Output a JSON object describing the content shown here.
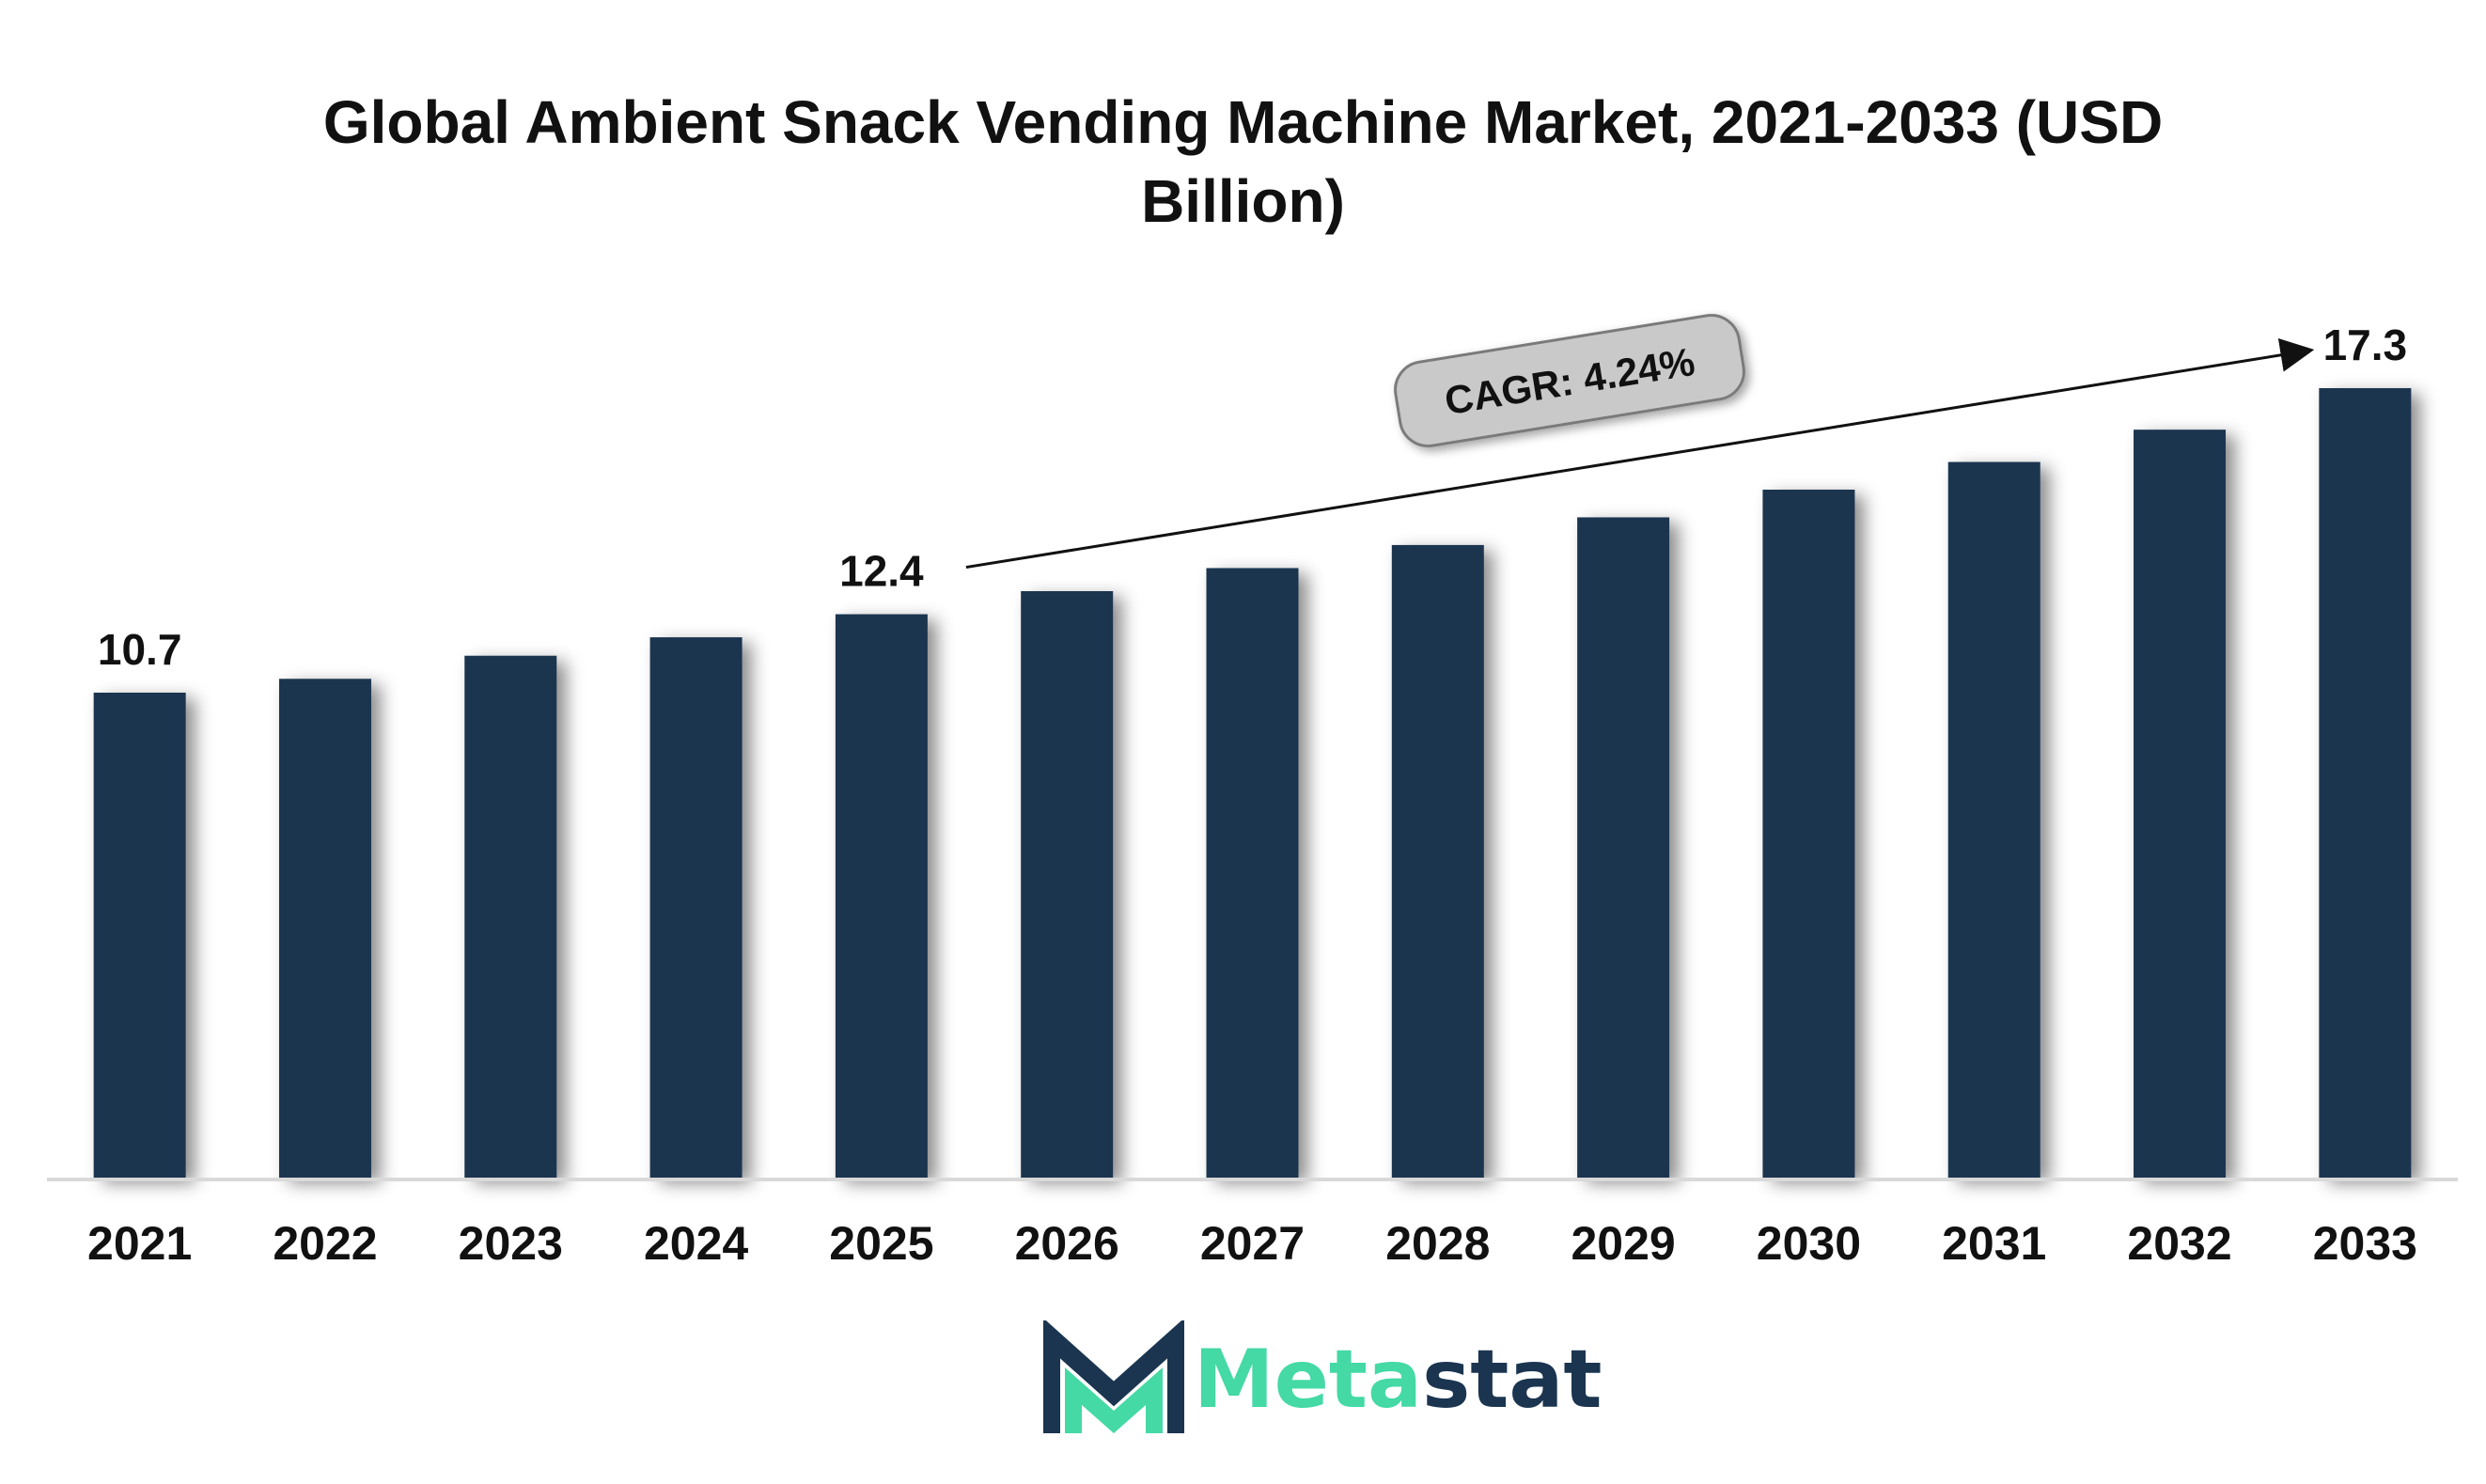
{
  "chart_data": {
    "type": "bar",
    "title": "Global Ambient Snack Vending Machine Market, 2021-2033 (USD Billion)",
    "xlabel": "",
    "ylabel": "",
    "categories": [
      "2021",
      "2022",
      "2023",
      "2024",
      "2025",
      "2026",
      "2027",
      "2028",
      "2029",
      "2030",
      "2031",
      "2032",
      "2033"
    ],
    "values": [
      10.7,
      11.0,
      11.5,
      11.9,
      12.4,
      12.9,
      13.4,
      13.9,
      14.5,
      15.1,
      15.7,
      16.4,
      17.3
    ],
    "data_labels": [
      {
        "category": "2021",
        "text": "10.7"
      },
      {
        "category": "2025",
        "text": "12.4"
      },
      {
        "category": "2033",
        "text": "17.3"
      }
    ],
    "ylim": [
      0,
      17.3
    ],
    "grid": false,
    "annotation": {
      "text": "CAGR: 4.24%",
      "from_category": "2025",
      "to_category": "2033"
    },
    "colors": {
      "bar": "#1b3550",
      "axis": "#d9d9d9",
      "annotation_fill": "#c9c9c9",
      "annotation_stroke": "#7a7a7a"
    }
  },
  "brand": {
    "name_part1": "Meta",
    "name_part2": "stat",
    "icon": "metastat-m-logo-icon",
    "color_accent": "#44d9a5",
    "color_dark": "#1b3550"
  }
}
